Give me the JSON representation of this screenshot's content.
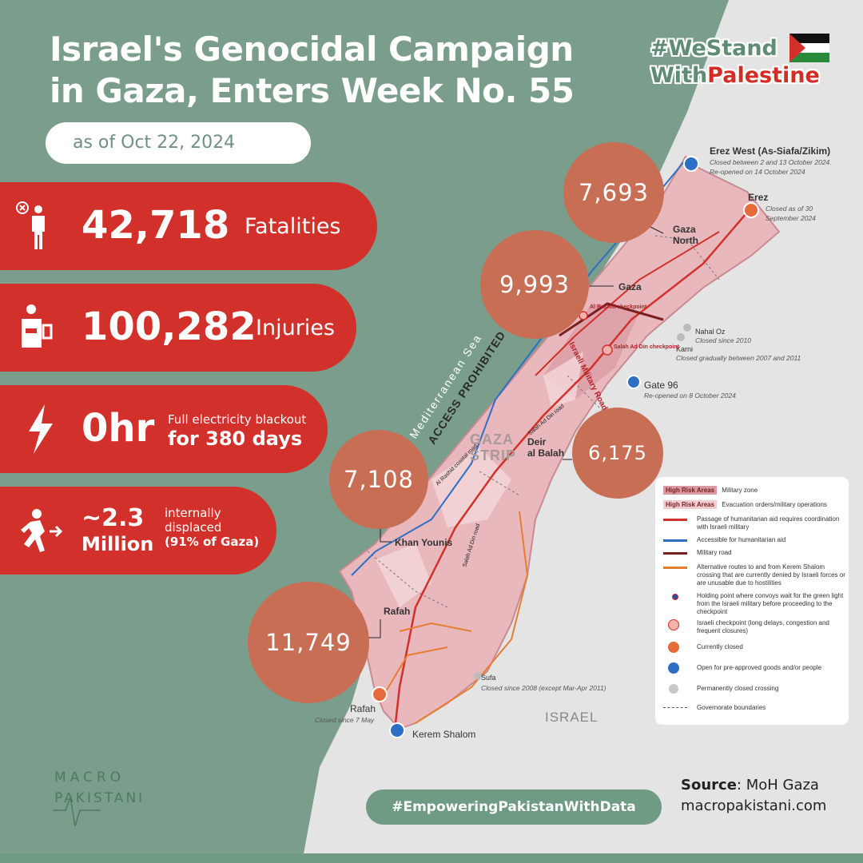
{
  "title_lines": [
    "Israel's Genocidal Campaign",
    "in Gaza, Enters Week No. 55"
  ],
  "date": "as of Oct 22, 2024",
  "hashtag": {
    "line1": "#WeStand",
    "line2_a": "With",
    "line2_b": "Palestine"
  },
  "stats": {
    "fatalities": {
      "value": "42,718",
      "label": "Fatalities"
    },
    "injuries": {
      "value": "100,282",
      "label": "Injuries"
    },
    "electricity": {
      "value": "0hr",
      "label_line1": "Full electricity blackout",
      "label_line2": "for 380 days"
    },
    "displaced": {
      "value_line1": "~2.3",
      "value_line2": "Million",
      "label_line1": "internally",
      "label_line2": "displaced",
      "label_line3": "(91% of Gaza)"
    }
  },
  "map": {
    "sea_label": "Mediterranean Sea",
    "access_label": "ACCESS PROHIBITED",
    "strip_label_1": "GAZA",
    "strip_label_2": "STRIP",
    "israel_label": "ISRAEL",
    "regions": {
      "gaza_north": {
        "name_1": "Gaza",
        "name_2": "North",
        "value": "7,693"
      },
      "gaza": {
        "name": "Gaza",
        "value": "9,993"
      },
      "deir_al_balah": {
        "name_1": "Deir",
        "name_2": "al Balah",
        "value": "6,175"
      },
      "khan_younis": {
        "name": "Khan Younis",
        "value": "7,108"
      },
      "rafah": {
        "name": "Rafah",
        "value": "11,749"
      }
    },
    "crossings": {
      "erez_west": {
        "name": "Erez West (As-Siafa/Zikim)",
        "note_1": "Closed between 2 and 13 October 2024.",
        "note_2": "Re-opened on 14 October 2024"
      },
      "erez": {
        "name": "Erez",
        "note_1": "Closed as of 30",
        "note_2": "September 2024"
      },
      "nahal_oz": {
        "name": "Nahal Oz",
        "note": "Closed since 2010"
      },
      "karni": {
        "name": "Karni",
        "note": "Closed gradually between 2007 and 2011"
      },
      "gate_96": {
        "name": "Gate 96",
        "note": "Re-opened on 8 October 2024"
      },
      "sufa": {
        "name": "Sufa",
        "note": "Closed since  2008 (except Mar-Apr 2011)"
      },
      "rafah": {
        "name": "Rafah",
        "note": "Closed since 7 May"
      },
      "kerem_shalom": {
        "name": "Kerem Shalom"
      }
    },
    "roads": {
      "military_road": "Israeli Military Road",
      "salah": "Salah Ad Din road",
      "rashid": "Al Rashid coastal road"
    },
    "checkpoints": {
      "rashid": "Al Rashid checkpoint",
      "salah": "Salah Ad Din checkpoint"
    }
  },
  "legend": {
    "tag_label": "High Risk Areas",
    "military_zone": "Military zone",
    "evacuation": "Evacuation orders/military operations",
    "red_line": "Passage of humanitarian aid requires coordination with Israeli military",
    "blue_line": "Accessible for humanitarian aid",
    "dark_line": "Military road",
    "orange_line": "Alternative routes to and from Kerem Shalom crossing that are currently denied by Israeli forces or are unusable due to hostilities",
    "holding_point": "Holding point where convoys wait for the green light from the Israeli military before proceeding to the checkpoint",
    "checkpoint": "Israeli checkpoint (long delays, congestion and frequent closures)",
    "closed": "Currently closed",
    "open": "Open for pre-approved goods and/or people",
    "perm_closed": "Permanently closed crossing",
    "boundaries": "Governorate boundaries"
  },
  "source": {
    "label": "Source",
    "value": ": MoH Gaza",
    "url": "macropakistani.com"
  },
  "footer_tag": "#EmpoweringPakistanWithData",
  "logo": {
    "line1": "MACRO",
    "line2": "PAKISTANI"
  },
  "colors": {
    "bg_green": "#7a9e8b",
    "red": "#d2302a",
    "bubble": "#c86e55",
    "strip": "#e9b8bd",
    "land": "#e4e4e4"
  }
}
